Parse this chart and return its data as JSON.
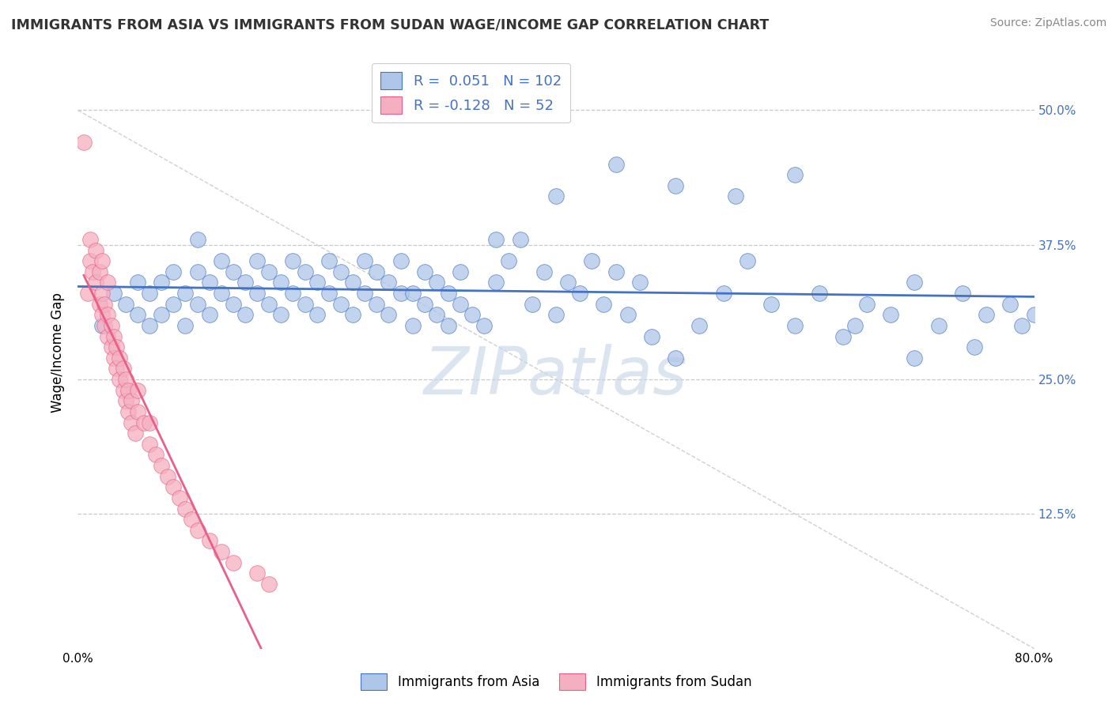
{
  "title": "IMMIGRANTS FROM ASIA VS IMMIGRANTS FROM SUDAN WAGE/INCOME GAP CORRELATION CHART",
  "source": "Source: ZipAtlas.com",
  "ylabel": "Wage/Income Gap",
  "xlim": [
    0.0,
    0.8
  ],
  "ylim": [
    0.0,
    0.55
  ],
  "yticks_right": [
    0.125,
    0.25,
    0.375,
    0.5
  ],
  "ytick_labels_right": [
    "12.5%",
    "25.0%",
    "37.5%",
    "50.0%"
  ],
  "grid_color": "#c8c8c8",
  "background_color": "#ffffff",
  "watermark": "ZIPatlas",
  "watermark_color": "#c8d8e8",
  "legend_R_asia": "0.051",
  "legend_N_asia": "102",
  "legend_R_sudan": "-0.128",
  "legend_N_sudan": "52",
  "asia_fill": "#aec6e8",
  "sudan_fill": "#f4afc0",
  "asia_edge": "#4472c4",
  "sudan_edge": "#e8608a",
  "asia_line": "#4472c4",
  "sudan_line": "#e8608a",
  "diag_line_color": "#d0d0d0",
  "asia_x": [
    0.02,
    0.03,
    0.04,
    0.05,
    0.05,
    0.06,
    0.06,
    0.07,
    0.07,
    0.08,
    0.08,
    0.09,
    0.09,
    0.1,
    0.1,
    0.1,
    0.11,
    0.11,
    0.12,
    0.12,
    0.13,
    0.13,
    0.14,
    0.14,
    0.15,
    0.15,
    0.16,
    0.16,
    0.17,
    0.17,
    0.18,
    0.18,
    0.19,
    0.19,
    0.2,
    0.2,
    0.21,
    0.21,
    0.22,
    0.22,
    0.23,
    0.23,
    0.24,
    0.24,
    0.25,
    0.25,
    0.26,
    0.26,
    0.27,
    0.27,
    0.28,
    0.28,
    0.29,
    0.29,
    0.3,
    0.3,
    0.31,
    0.31,
    0.32,
    0.32,
    0.33,
    0.34,
    0.35,
    0.36,
    0.37,
    0.38,
    0.39,
    0.4,
    0.41,
    0.42,
    0.43,
    0.44,
    0.45,
    0.46,
    0.47,
    0.48,
    0.5,
    0.52,
    0.54,
    0.56,
    0.58,
    0.6,
    0.62,
    0.64,
    0.66,
    0.68,
    0.7,
    0.72,
    0.74,
    0.76,
    0.78,
    0.79,
    0.8,
    0.35,
    0.4,
    0.45,
    0.5,
    0.55,
    0.6,
    0.65,
    0.7,
    0.75
  ],
  "asia_y": [
    0.3,
    0.33,
    0.32,
    0.31,
    0.34,
    0.3,
    0.33,
    0.31,
    0.34,
    0.32,
    0.35,
    0.3,
    0.33,
    0.32,
    0.35,
    0.38,
    0.31,
    0.34,
    0.33,
    0.36,
    0.32,
    0.35,
    0.31,
    0.34,
    0.33,
    0.36,
    0.32,
    0.35,
    0.31,
    0.34,
    0.33,
    0.36,
    0.32,
    0.35,
    0.31,
    0.34,
    0.33,
    0.36,
    0.32,
    0.35,
    0.31,
    0.34,
    0.33,
    0.36,
    0.32,
    0.35,
    0.31,
    0.34,
    0.33,
    0.36,
    0.3,
    0.33,
    0.32,
    0.35,
    0.31,
    0.34,
    0.33,
    0.3,
    0.32,
    0.35,
    0.31,
    0.3,
    0.34,
    0.36,
    0.38,
    0.32,
    0.35,
    0.31,
    0.34,
    0.33,
    0.36,
    0.32,
    0.35,
    0.31,
    0.34,
    0.29,
    0.27,
    0.3,
    0.33,
    0.36,
    0.32,
    0.3,
    0.33,
    0.29,
    0.32,
    0.31,
    0.34,
    0.3,
    0.33,
    0.31,
    0.32,
    0.3,
    0.31,
    0.38,
    0.42,
    0.45,
    0.43,
    0.42,
    0.44,
    0.3,
    0.27,
    0.28
  ],
  "sudan_x": [
    0.005,
    0.008,
    0.01,
    0.01,
    0.012,
    0.015,
    0.015,
    0.018,
    0.018,
    0.02,
    0.02,
    0.02,
    0.022,
    0.022,
    0.025,
    0.025,
    0.025,
    0.028,
    0.028,
    0.03,
    0.03,
    0.032,
    0.032,
    0.035,
    0.035,
    0.038,
    0.038,
    0.04,
    0.04,
    0.042,
    0.042,
    0.045,
    0.045,
    0.048,
    0.05,
    0.05,
    0.055,
    0.06,
    0.06,
    0.065,
    0.07,
    0.075,
    0.08,
    0.085,
    0.09,
    0.095,
    0.1,
    0.11,
    0.12,
    0.13,
    0.15,
    0.16
  ],
  "sudan_y": [
    0.47,
    0.33,
    0.36,
    0.38,
    0.35,
    0.34,
    0.37,
    0.32,
    0.35,
    0.31,
    0.33,
    0.36,
    0.3,
    0.32,
    0.29,
    0.31,
    0.34,
    0.28,
    0.3,
    0.27,
    0.29,
    0.26,
    0.28,
    0.25,
    0.27,
    0.24,
    0.26,
    0.23,
    0.25,
    0.22,
    0.24,
    0.21,
    0.23,
    0.2,
    0.22,
    0.24,
    0.21,
    0.19,
    0.21,
    0.18,
    0.17,
    0.16,
    0.15,
    0.14,
    0.13,
    0.12,
    0.11,
    0.1,
    0.09,
    0.08,
    0.07,
    0.06
  ]
}
